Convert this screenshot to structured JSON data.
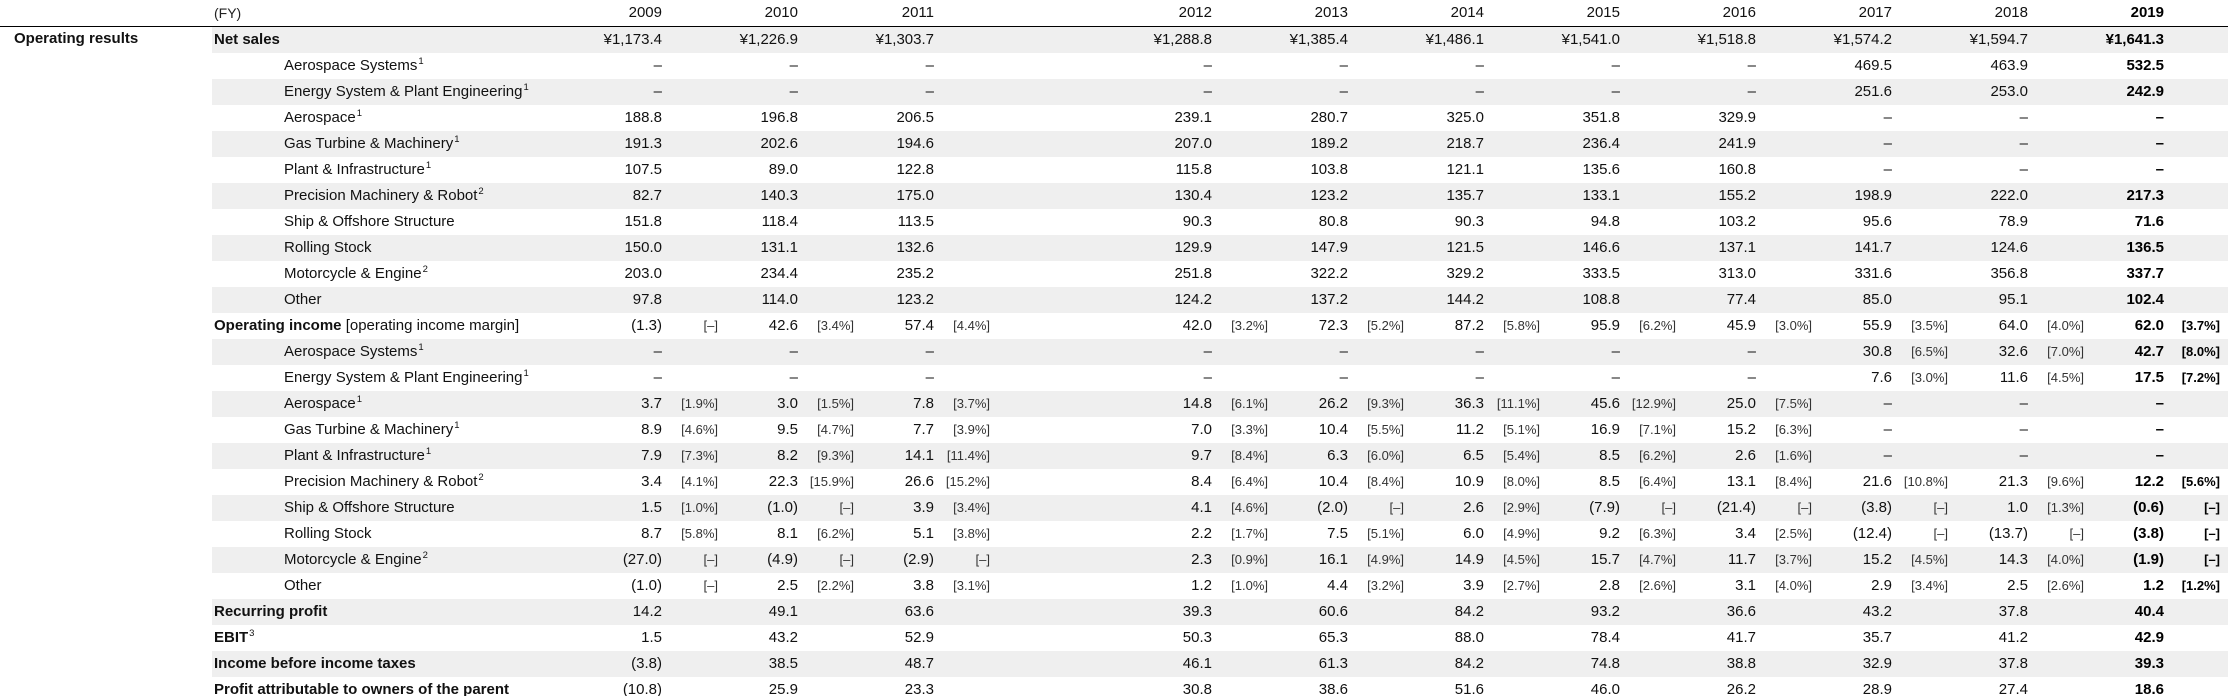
{
  "section": {
    "title": "Operating results"
  },
  "header": {
    "fy": "(FY)",
    "years": [
      "2009",
      "2010",
      "2011",
      "2012",
      "2013",
      "2014",
      "2015",
      "2016",
      "2017",
      "2018",
      "2019"
    ]
  },
  "rows": [
    {
      "label": "Net sales",
      "bold": true,
      "indent": false,
      "values": [
        "¥1,173.4",
        "¥1,226.9",
        "¥1,303.7",
        "¥1,288.8",
        "¥1,385.4",
        "¥1,486.1",
        "¥1,541.0",
        "¥1,518.8",
        "¥1,574.2",
        "¥1,594.7",
        "¥1,641.3"
      ]
    },
    {
      "label": "Aerospace Systems",
      "sup": "1",
      "indent": true,
      "values": [
        "–",
        "–",
        "–",
        "–",
        "–",
        "–",
        "–",
        "–",
        "469.5",
        "463.9",
        "532.5"
      ]
    },
    {
      "label": "Energy System & Plant Engineering",
      "sup": "1",
      "indent": true,
      "values": [
        "–",
        "–",
        "–",
        "–",
        "–",
        "–",
        "–",
        "–",
        "251.6",
        "253.0",
        "242.9"
      ]
    },
    {
      "label": "Aerospace",
      "sup": "1",
      "indent": true,
      "values": [
        "188.8",
        "196.8",
        "206.5",
        "239.1",
        "280.7",
        "325.0",
        "351.8",
        "329.9",
        "–",
        "–",
        "–"
      ]
    },
    {
      "label": "Gas Turbine & Machinery",
      "sup": "1",
      "indent": true,
      "values": [
        "191.3",
        "202.6",
        "194.6",
        "207.0",
        "189.2",
        "218.7",
        "236.4",
        "241.9",
        "–",
        "–",
        "–"
      ]
    },
    {
      "label": "Plant & Infrastructure",
      "sup": "1",
      "indent": true,
      "values": [
        "107.5",
        "89.0",
        "122.8",
        "115.8",
        "103.8",
        "121.1",
        "135.6",
        "160.8",
        "–",
        "–",
        "–"
      ]
    },
    {
      "label": "Precision Machinery & Robot",
      "sup": "2",
      "indent": true,
      "values": [
        "82.7",
        "140.3",
        "175.0",
        "130.4",
        "123.2",
        "135.7",
        "133.1",
        "155.2",
        "198.9",
        "222.0",
        "217.3"
      ]
    },
    {
      "label": "Ship & Offshore Structure",
      "indent": true,
      "values": [
        "151.8",
        "118.4",
        "113.5",
        "90.3",
        "80.8",
        "90.3",
        "94.8",
        "103.2",
        "95.6",
        "78.9",
        "71.6"
      ]
    },
    {
      "label": "Rolling Stock",
      "indent": true,
      "values": [
        "150.0",
        "131.1",
        "132.6",
        "129.9",
        "147.9",
        "121.5",
        "146.6",
        "137.1",
        "141.7",
        "124.6",
        "136.5"
      ]
    },
    {
      "label": "Motorcycle & Engine",
      "sup": "2",
      "indent": true,
      "values": [
        "203.0",
        "234.4",
        "235.2",
        "251.8",
        "322.2",
        "329.2",
        "333.5",
        "313.0",
        "331.6",
        "356.8",
        "337.7"
      ]
    },
    {
      "label": "Other",
      "indent": true,
      "values": [
        "97.8",
        "114.0",
        "123.2",
        "124.2",
        "137.2",
        "144.2",
        "108.8",
        "77.4",
        "85.0",
        "95.1",
        "102.4"
      ]
    },
    {
      "label": "Operating income",
      "suffix": "[operating income margin]",
      "bold": true,
      "values": [
        "(1.3)",
        "42.6",
        "57.4",
        "42.0",
        "72.3",
        "87.2",
        "95.9",
        "45.9",
        "55.9",
        "64.0",
        "62.0"
      ],
      "margins": [
        "[–]",
        "[3.4%]",
        "[4.4%]",
        "[3.2%]",
        "[5.2%]",
        "[5.8%]",
        "[6.2%]",
        "[3.0%]",
        "[3.5%]",
        "[4.0%]",
        "[3.7%]"
      ]
    },
    {
      "label": "Aerospace Systems",
      "sup": "1",
      "indent": true,
      "values": [
        "–",
        "–",
        "–",
        "–",
        "–",
        "–",
        "–",
        "–",
        "30.8",
        "32.6",
        "42.7"
      ],
      "margins": [
        "",
        "",
        "",
        "",
        "",
        "",
        "",
        "",
        "[6.5%]",
        "[7.0%]",
        "[8.0%]"
      ]
    },
    {
      "label": "Energy System & Plant Engineering",
      "sup": "1",
      "indent": true,
      "values": [
        "–",
        "–",
        "–",
        "–",
        "–",
        "–",
        "–",
        "–",
        "7.6",
        "11.6",
        "17.5"
      ],
      "margins": [
        "",
        "",
        "",
        "",
        "",
        "",
        "",
        "",
        "[3.0%]",
        "[4.5%]",
        "[7.2%]"
      ]
    },
    {
      "label": "Aerospace",
      "sup": "1",
      "indent": true,
      "values": [
        "3.7",
        "3.0",
        "7.8",
        "14.8",
        "26.2",
        "36.3",
        "45.6",
        "25.0",
        "–",
        "–",
        "–"
      ],
      "margins": [
        "[1.9%]",
        "[1.5%]",
        "[3.7%]",
        "[6.1%]",
        "[9.3%]",
        "[11.1%]",
        "[12.9%]",
        "[7.5%]",
        "",
        "",
        ""
      ]
    },
    {
      "label": "Gas Turbine & Machinery",
      "sup": "1",
      "indent": true,
      "values": [
        "8.9",
        "9.5",
        "7.7",
        "7.0",
        "10.4",
        "11.2",
        "16.9",
        "15.2",
        "–",
        "–",
        "–"
      ],
      "margins": [
        "[4.6%]",
        "[4.7%]",
        "[3.9%]",
        "[3.3%]",
        "[5.5%]",
        "[5.1%]",
        "[7.1%]",
        "[6.3%]",
        "",
        "",
        ""
      ]
    },
    {
      "label": "Plant & Infrastructure",
      "sup": "1",
      "indent": true,
      "values": [
        "7.9",
        "8.2",
        "14.1",
        "9.7",
        "6.3",
        "6.5",
        "8.5",
        "2.6",
        "–",
        "–",
        "–"
      ],
      "margins": [
        "[7.3%]",
        "[9.3%]",
        "[11.4%]",
        "[8.4%]",
        "[6.0%]",
        "[5.4%]",
        "[6.2%]",
        "[1.6%]",
        "",
        "",
        ""
      ]
    },
    {
      "label": "Precision Machinery & Robot",
      "sup": "2",
      "indent": true,
      "values": [
        "3.4",
        "22.3",
        "26.6",
        "8.4",
        "10.4",
        "10.9",
        "8.5",
        "13.1",
        "21.6",
        "21.3",
        "12.2"
      ],
      "margins": [
        "[4.1%]",
        "[15.9%]",
        "[15.2%]",
        "[6.4%]",
        "[8.4%]",
        "[8.0%]",
        "[6.4%]",
        "[8.4%]",
        "[10.8%]",
        "[9.6%]",
        "[5.6%]"
      ]
    },
    {
      "label": "Ship & Offshore Structure",
      "indent": true,
      "values": [
        "1.5",
        "(1.0)",
        "3.9",
        "4.1",
        "(2.0)",
        "2.6",
        "(7.9)",
        "(21.4)",
        "(3.8)",
        "1.0",
        "(0.6)"
      ],
      "margins": [
        "[1.0%]",
        "[–]",
        "[3.4%]",
        "[4.6%]",
        "[–]",
        "[2.9%]",
        "[–]",
        "[–]",
        "[–]",
        "[1.3%]",
        "[–]"
      ]
    },
    {
      "label": "Rolling Stock",
      "indent": true,
      "values": [
        "8.7",
        "8.1",
        "5.1",
        "2.2",
        "7.5",
        "6.0",
        "9.2",
        "3.4",
        "(12.4)",
        "(13.7)",
        "(3.8)"
      ],
      "margins": [
        "[5.8%]",
        "[6.2%]",
        "[3.8%]",
        "[1.7%]",
        "[5.1%]",
        "[4.9%]",
        "[6.3%]",
        "[2.5%]",
        "[–]",
        "[–]",
        "[–]"
      ]
    },
    {
      "label": "Motorcycle & Engine",
      "sup": "2",
      "indent": true,
      "values": [
        "(27.0)",
        "(4.9)",
        "(2.9)",
        "2.3",
        "16.1",
        "14.9",
        "15.7",
        "11.7",
        "15.2",
        "14.3",
        "(1.9)"
      ],
      "margins": [
        "[–]",
        "[–]",
        "[–]",
        "[0.9%]",
        "[4.9%]",
        "[4.5%]",
        "[4.7%]",
        "[3.7%]",
        "[4.5%]",
        "[4.0%]",
        "[–]"
      ]
    },
    {
      "label": "Other",
      "indent": true,
      "values": [
        "(1.0)",
        "2.5",
        "3.8",
        "1.2",
        "4.4",
        "3.9",
        "2.8",
        "3.1",
        "2.9",
        "2.5",
        "1.2"
      ],
      "margins": [
        "[–]",
        "[2.2%]",
        "[3.1%]",
        "[1.0%]",
        "[3.2%]",
        "[2.7%]",
        "[2.6%]",
        "[4.0%]",
        "[3.4%]",
        "[2.6%]",
        "[1.2%]"
      ]
    },
    {
      "label": "Recurring profit",
      "bold": true,
      "values": [
        "14.2",
        "49.1",
        "63.6",
        "39.3",
        "60.6",
        "84.2",
        "93.2",
        "36.6",
        "43.2",
        "37.8",
        "40.4"
      ]
    },
    {
      "label": "EBIT",
      "sup": "3",
      "bold": true,
      "values": [
        "1.5",
        "43.2",
        "52.9",
        "50.3",
        "65.3",
        "88.0",
        "78.4",
        "41.7",
        "35.7",
        "41.2",
        "42.9"
      ]
    },
    {
      "label": "Income before income taxes",
      "bold": true,
      "values": [
        "(3.8)",
        "38.5",
        "48.7",
        "46.1",
        "61.3",
        "84.2",
        "74.8",
        "38.8",
        "32.9",
        "37.8",
        "39.3"
      ]
    },
    {
      "label": "Profit attributable to owners of the parent",
      "bold": true,
      "values": [
        "(10.8)",
        "25.9",
        "23.3",
        "30.8",
        "38.6",
        "51.6",
        "46.0",
        "26.2",
        "28.9",
        "27.4",
        "18.6"
      ]
    }
  ]
}
